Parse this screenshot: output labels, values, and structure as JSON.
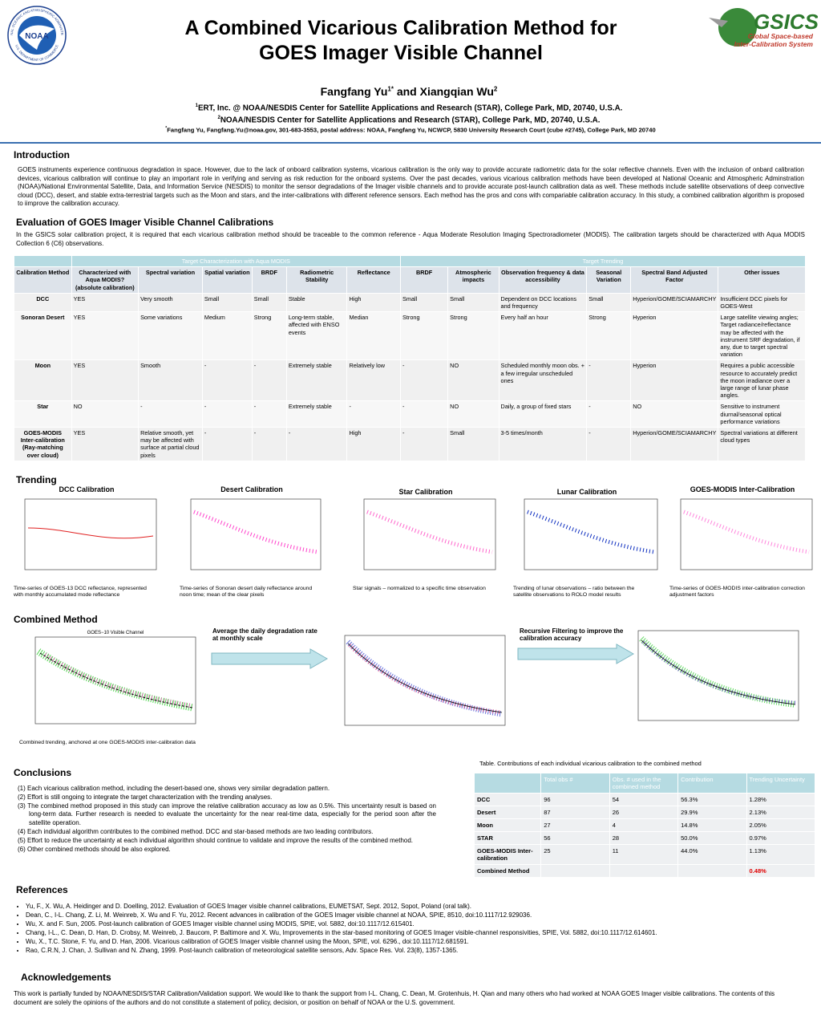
{
  "header": {
    "title_lines": [
      "A Combined Vicarious Calibration Method for",
      "GOES Imager Visible Channel"
    ],
    "authors": [
      {
        "name": "Fangfang Yu",
        "sup": "1*"
      },
      {
        "name": "Xiangqian Wu",
        "sup": "2"
      }
    ],
    "authors_joiner": "and",
    "affiliations": [
      {
        "sup": "1",
        "text": "ERT, Inc. @ NOAA/NESDIS Center for Satellite Applications and Research (STAR), College Park, MD, 20740, U.S.A."
      },
      {
        "sup": "2",
        "text": "NOAA/NESDIS Center for Satellite Applications and Research (STAR), College Park, MD, 20740, U.S.A."
      }
    ],
    "contact": {
      "sup": "*",
      "text": "Fangfang Yu,  Fangfang.Yu@noaa.gov,  301-683-3553,  postal address: NOAA, Fangfang Yu, NCWCP, 5830 University Research Court (cube #2745), College Park, MD 20740"
    },
    "noaa_logo": {
      "center": "NOAA",
      "ring_top": "NATIONAL OCEANIC AND ATMOSPHERIC ADMINISTRATION",
      "ring_bottom": "U.S. DEPARTMENT OF COMMERCE"
    },
    "gsics_logo": {
      "name": "GSICS",
      "line1": "Global Space-based",
      "line2": "Inter-Calibration System"
    }
  },
  "introduction": {
    "heading": "Introduction",
    "text": "GOES instruments experience continuous degradation in space. However, due to the lack of onboard calibration systems, vicarious calibration is the only way to provide accurate radiometric data for the solar reflective channels.  Even with the inclusion of onbard calibration devices, vicarious calibration will continue to play an important role in verifying and serving as risk reduction for the onboard systems. Over the past decades, various vicarious calibration methods have been developed at National Oceanic and Atmospheric Adminstration (NOAA)/National Environmental Satellite, Data, and Information Service (NESDIS) to monitor the sensor degradations of the Imager visible channels and to provide accurate post-launch calibration data as well.  These methods include satellite observations of deep convective cloud (DCC), desert, and stable extra-terrestrial targets such as the Moon and stars, and the inter-calibrations with different reference sensors. Each method has the pros and cons with compariable calibration accuracy.  In this study, a combined calibration algorithm is proposed to iimprove the calibration accuracy."
  },
  "evaluation": {
    "heading": "Evaluation of GOES Imager Visible Channel Calibrations",
    "text": "In the GSICS solar calibration project, it is required that each vicarious calibration method should be traceable to the common reference - Aqua Moderate Resolution Imaging Spectroradiometer (MODIS).  The calibration targets should be characterized with Aqua MODIS Collection 6 (C6) observations.",
    "table": {
      "groups": [
        "Target Characterization with Aqua MODIS",
        "Target Trending"
      ],
      "columns": [
        "Calibration Method",
        "Characterized with Aqua MODIS? (absolute calibration)",
        "Spectral variation",
        "Spatial variation",
        "BRDF",
        "Radiometric Stability",
        "Reflectance",
        "BRDF",
        "Atmospheric impacts",
        "Observation frequency & data accessibility",
        "Seasonal Variation",
        "Spectral Band Adjusted Factor",
        "Other issues"
      ],
      "rows": [
        [
          "DCC",
          "YES",
          "Very smooth",
          "Small",
          "Small",
          "Stable",
          "High",
          "Small",
          "Small",
          "Dependent on DCC locations and frequency",
          "Small",
          "Hyperion/GOME/SCIAMARCHY",
          "Insufficient DCC pixels for GOES-West"
        ],
        [
          "Sonoran Desert",
          "YES",
          "Some variations",
          "Medium",
          "Strong",
          "Long-term stable, affected with ENSO events",
          "Median",
          "Strong",
          "Strong",
          "Every half an hour",
          "Strong",
          "Hyperion",
          "Large satellite viewing angles; Target radiance/reflectance may be affected with the instrument SRF degradation, if any, due to target spectral variation"
        ],
        [
          "Moon",
          "YES",
          "Smooth",
          "-",
          "-",
          "Extremely stable",
          "Relatively low",
          "-",
          "NO",
          "Scheduled monthly moon obs. + a few irregular unscheduled ones",
          "-",
          "Hyperion",
          "Requires a public accessible resource to accurately predict the moon irradiance over a large range of lunar phase angles."
        ],
        [
          "Star",
          "NO",
          "-",
          "-",
          "-",
          "Extremely stable",
          "-",
          "-",
          "NO",
          "Daily, a group of fixed stars",
          "-",
          "NO",
          "Sensitive to instrument diurnal/seasonal optical performance variations"
        ],
        [
          "GOES-MODIS Inter-calibration (Ray-matching over cloud)",
          "YES",
          "Relative smooth, yet may be affected with surface at partial cloud pixels",
          "-",
          "-",
          "-",
          "High",
          "-",
          "Small",
          "3-5 times/month",
          "-",
          "Hyperion/GOME/SCIAMARCHY",
          "Spectral variations at different cloud types"
        ]
      ]
    }
  },
  "trending": {
    "heading": "Trending",
    "plots": [
      {
        "title": "DCC Calibration",
        "caption": "Time-series of GOES-13 DCC reflectance, represented with monthly accumulated  mode reflectance"
      },
      {
        "title": "Desert Calibration",
        "caption": "Time-series of Sonoran desert  daily reflectance around noon time; mean of the clear pixels"
      },
      {
        "title": "Star Calibration",
        "caption": "Star signals – normalized to a specific time observation"
      },
      {
        "title": "Lunar Calibration",
        "caption": "Trending of lunar observations – ratio between the satellite observations to ROLO model results"
      },
      {
        "title": "GOES-MODIS Inter-Calibration",
        "caption": "Time-series of GOES-MODIS inter-calibration correction adjustment factors"
      }
    ]
  },
  "combined": {
    "heading": "Combined Method",
    "plot_title": "GOES−10 Visible Channel",
    "caption": "Combined trending, anchored at one GOES-MODIS inter-calibration data",
    "step1": "Average the daily degradation rate at monthly scale",
    "step2": "Recursive Filtering to improve the calibration accuracy"
  },
  "conclusions": {
    "heading": "Conclusions",
    "items": [
      "(1) Each vicarious calibration method, including the desert-based one, shows very similar degradation pattern.",
      "(2) Effort is still ongoing to integrate the target characterization with the trending analyses.",
      "(3) The combined method proposed in this study can improve the relative calibration accuracy as low as 0.5%.  This uncertainty result is based on long-term data.  Further research is needed to evaluate the uncertainty for the near real-time data, especially for the period soon after the satellite operation.",
      "(4) Each individual algorithm contributes to the combined method.  DCC and star-based methods are two leading contributors.",
      "(5) Effort to reduce the uncertainty at each individual algorithm should continue to validate and improve the results of the combined method.",
      "(6) Other combined methods should be also explored."
    ]
  },
  "contributions": {
    "caption": "Table. Contributions of each individual vicarious calibration to the combined method",
    "columns": [
      "Total obs #",
      "Obs. # used in the combined method",
      "Contribution",
      "Trending Uncertainty"
    ],
    "rows": [
      [
        "DCC",
        "96",
        "54",
        "56.3%",
        "1.28%"
      ],
      [
        "Desert",
        "87",
        "26",
        "29.9%",
        "2.13%"
      ],
      [
        "Moon",
        "27",
        "4",
        "14.8%",
        "2.05%"
      ],
      [
        "STAR",
        "56",
        "28",
        "50.0%",
        "0.97%"
      ],
      [
        "GOES-MODIS Inter-calibration",
        "25",
        "11",
        "44.0%",
        "1.13%"
      ]
    ],
    "combined_row": {
      "name": "Combined Method",
      "uncertainty": "0.48%"
    }
  },
  "references": {
    "heading": "References",
    "items": [
      "Yu, F., X. Wu, A. Heidinger and D. Doelling, 2012. Evaluation of GOES Imager visible channel calibrations, EUMETSAT, Sept. 2012, Sopot, Poland (oral talk).",
      "Dean, C., I-L. Chang, Z. Li, M. Weinreb, X. Wu and F. Yu, 2012. Recent advances in calibration of the GOES Imager visible channel at NOAA, SPIE, 8510, doi:10.1117/12.929036.",
      "Wu, X. and F. Sun, 2005. Post-launch calibration of GOES Imager visible channel using MODIS, SPIE, vol. 5882, doi:10.1117/12.615401.",
      "Chang, I-L., C. Dean, D. Han, D. Crobsy, M. Weinreb, J. Baucom, P. Baltimore and X. Wu, Improvements in the star-based monitoring of GOES Imager visible-channel responsivities, SPIE, Vol. 5882, doi:10.1117/12.614601.",
      "Wu, X., T.C. Stone, F. Yu, and D. Han, 2006. Vicarious calibration of GOES Imager visible channel using the Moon, SPIE, vol. 6296., doi:10.1117/12.681591.",
      "Rao, C.R.N, J. Chan, J. Sullivan and N. Zhang, 1999. Post-launch calibration of meteorological satellite sensors, Adv. Space Res. Vol. 23(8), 1357-1365."
    ]
  },
  "acknowledgements": {
    "heading": "Acknowledgements",
    "text": "This work is partially funded by NOAA/NESDIS/STAR Calibration/Validation support. We would like to thank the support from I-L. Chang, C. Dean, M. Grotenhuis, H. Qian and many others who had worked at NOAA GOES Imager visible calibrations.  The contents of this document are solely the opinions of the authors and do not constitute a statement of policy, decision, or position on behalf of NOAA or the U.S. government."
  }
}
